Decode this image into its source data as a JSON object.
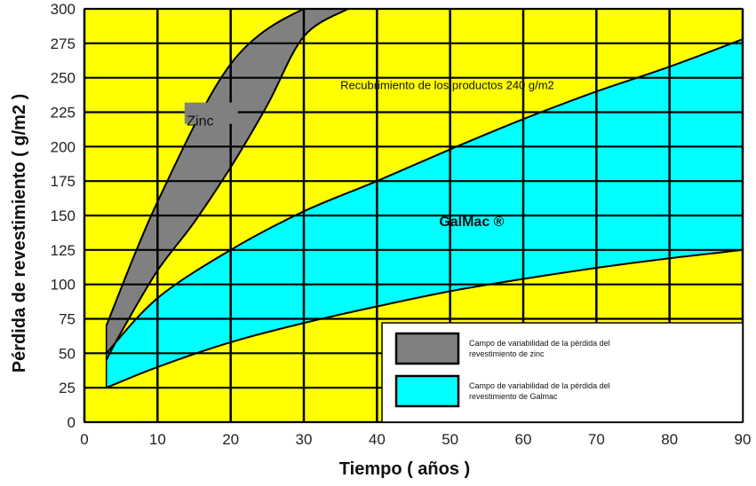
{
  "chart_data": {
    "type": "area",
    "xlabel": "Tiempo ( años )",
    "ylabel": "Pérdida de revestimiento ( g/m2 )",
    "xlim": [
      0,
      90
    ],
    "ylim": [
      0,
      300
    ],
    "x_ticks": [
      "0",
      "10",
      "20",
      "30",
      "40",
      "50",
      "60",
      "70",
      "80",
      "90"
    ],
    "y_ticks": [
      "0",
      "25",
      "50",
      "75",
      "100",
      "125",
      "150",
      "175",
      "200",
      "225",
      "250",
      "275",
      "300"
    ],
    "grid": true,
    "background_color": "#ffff00",
    "annotation": {
      "text": "Recubrimiento de los productos 240 g/m2",
      "x": 35,
      "y": 245
    },
    "series": [
      {
        "name": "Zinc",
        "color": "#808080",
        "upper": {
          "x": [
            3,
            10,
            20,
            30,
            36
          ],
          "y": [
            70,
            160,
            260,
            300,
            300
          ]
        },
        "lower": {
          "x": [
            3,
            5,
            10,
            15,
            20,
            25,
            30,
            36
          ],
          "y": [
            45,
            65,
            110,
            145,
            185,
            230,
            280,
            300
          ]
        }
      },
      {
        "name": "GalMac ®",
        "color": "#00ffff",
        "upper": {
          "x": [
            3,
            10,
            20,
            30,
            40,
            50,
            60,
            70,
            80,
            90
          ],
          "y": [
            50,
            90,
            125,
            153,
            175,
            198,
            220,
            240,
            258,
            278
          ]
        },
        "lower": {
          "x": [
            3,
            10,
            20,
            30,
            40,
            50,
            60,
            70,
            80,
            90
          ],
          "y": [
            25,
            40,
            58,
            72,
            84,
            95,
            104,
            112,
            119,
            125
          ]
        }
      }
    ],
    "legend": {
      "placement": "bottom-right",
      "entries": [
        {
          "text": "Campo de variabilidad de la pérdida del revestimiento de zinc",
          "color": "#808080"
        },
        {
          "text": "Campo de variabilidad de la pérdida del revestimiento de Galmac",
          "color": "#00ffff"
        }
      ]
    }
  }
}
